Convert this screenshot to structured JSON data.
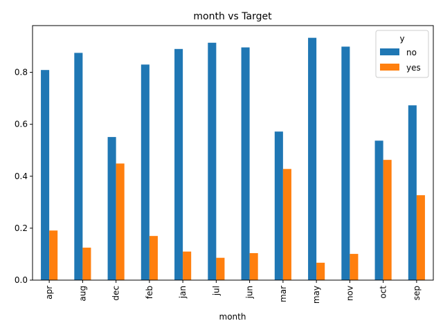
{
  "chart_data": {
    "type": "bar",
    "title": "month vs Target",
    "xlabel": "month",
    "ylabel": "",
    "categories": [
      "apr",
      "aug",
      "dec",
      "feb",
      "jan",
      "jul",
      "jun",
      "mar",
      "may",
      "nov",
      "oct",
      "sep"
    ],
    "series": [
      {
        "name": "no",
        "color": "#1f77b4",
        "values": [
          0.809,
          0.875,
          0.551,
          0.83,
          0.89,
          0.914,
          0.896,
          0.572,
          0.933,
          0.899,
          0.537,
          0.673
        ]
      },
      {
        "name": "yes",
        "color": "#ff7f0e",
        "values": [
          0.191,
          0.125,
          0.449,
          0.17,
          0.11,
          0.086,
          0.104,
          0.428,
          0.067,
          0.101,
          0.463,
          0.327
        ]
      }
    ],
    "ylim": [
      0,
      0.98
    ],
    "yticks": [
      0.0,
      0.2,
      0.4,
      0.6,
      0.8
    ],
    "ytick_labels": [
      "0.0",
      "0.2",
      "0.4",
      "0.6",
      "0.8"
    ],
    "grid": false,
    "legend": {
      "title": "y",
      "placement": "top-right"
    }
  }
}
